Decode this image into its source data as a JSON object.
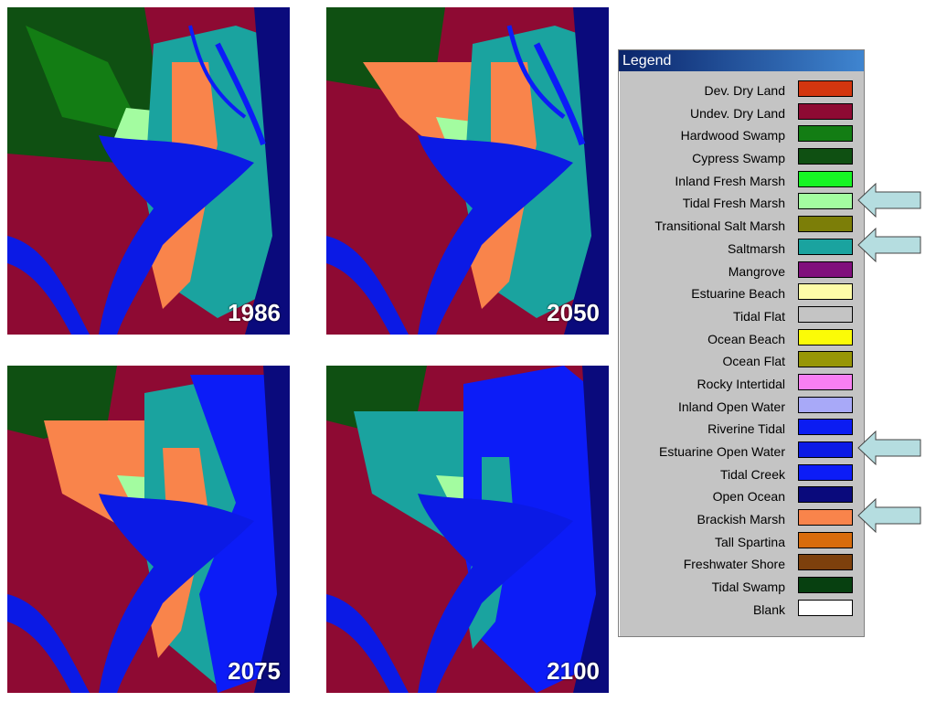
{
  "maps": [
    {
      "year": "1986"
    },
    {
      "year": "2050"
    },
    {
      "year": "2075"
    },
    {
      "year": "2100"
    }
  ],
  "legend": {
    "title": "Legend",
    "items": [
      {
        "label": "Dev. Dry Land",
        "color": "#d3360f"
      },
      {
        "label": "Undev. Dry Land",
        "color": "#8e0a33"
      },
      {
        "label": "Hardwood Swamp",
        "color": "#137d14"
      },
      {
        "label": "Cypress Swamp",
        "color": "#0f5012"
      },
      {
        "label": "Inland Fresh Marsh",
        "color": "#17f524"
      },
      {
        "label": "Tidal Fresh Marsh",
        "color": "#a3fca0"
      },
      {
        "label": "Transitional Salt Marsh",
        "color": "#7c7e08"
      },
      {
        "label": "Saltmarsh",
        "color": "#1aa39f"
      },
      {
        "label": "Mangrove",
        "color": "#800f7c"
      },
      {
        "label": "Estuarine Beach",
        "color": "#fdfca8"
      },
      {
        "label": "Tidal Flat",
        "color": "#c4c4c4"
      },
      {
        "label": "Ocean Beach",
        "color": "#fbfb07"
      },
      {
        "label": "Ocean Flat",
        "color": "#979606"
      },
      {
        "label": "Rocky Intertidal",
        "color": "#f87ff2"
      },
      {
        "label": "Inland Open Water",
        "color": "#a8a9f8"
      },
      {
        "label": "Riverine Tidal",
        "color": "#0b1cf2"
      },
      {
        "label": "Estuarine Open Water",
        "color": "#0b1ae5"
      },
      {
        "label": "Tidal Creek",
        "color": "#0c1cf7"
      },
      {
        "label": "Open Ocean ",
        "color": "#0a0a7c"
      },
      {
        "label": "Brackish Marsh",
        "color": "#f9844b"
      },
      {
        "label": "Tall Spartina",
        "color": "#d86c0c"
      },
      {
        "label": "Freshwater Shore",
        "color": "#7d400c"
      },
      {
        "label": "Tidal Swamp",
        "color": "#074010"
      },
      {
        "label": "Blank",
        "color": "#ffffff"
      }
    ]
  },
  "highlighted_items": [
    "Tidal Fresh Marsh",
    "Saltmarsh",
    "Estuarine Open Water",
    "Brackish Marsh"
  ],
  "arrow_color": "#b5dde0"
}
